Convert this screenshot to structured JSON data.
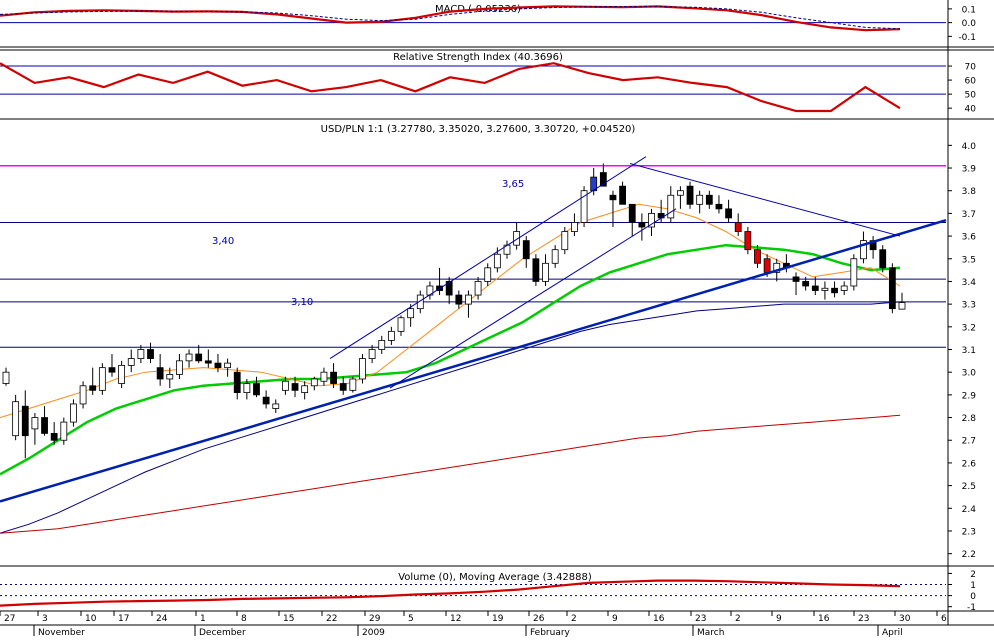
{
  "chart_data": [
    {
      "type": "line",
      "title": "MACD (-0.05236)",
      "y_ticks": [
        0.1,
        0.0,
        -0.1
      ],
      "ylim": [
        -0.17,
        0.15
      ],
      "x": [
        0,
        4,
        8,
        12,
        16,
        20,
        24,
        28,
        32,
        36,
        40,
        44,
        48,
        52,
        56,
        60,
        64,
        68,
        72,
        76,
        80,
        84,
        88,
        92,
        96,
        100,
        104
      ],
      "series": [
        {
          "color": "#d00000",
          "values": [
            0.05,
            0.075,
            0.085,
            0.09,
            0.085,
            0.08,
            0.082,
            0.078,
            0.06,
            0.03,
            0.0,
            0.005,
            0.035,
            0.08,
            0.1,
            0.11,
            0.118,
            0.115,
            0.112,
            0.118,
            0.105,
            0.09,
            0.055,
            0.005,
            -0.035,
            -0.055,
            -0.048
          ]
        },
        {
          "color": "#000080",
          "style": "dashed",
          "values": [
            0.06,
            0.07,
            0.078,
            0.082,
            0.084,
            0.083,
            0.08,
            0.078,
            0.07,
            0.05,
            0.025,
            0.015,
            0.025,
            0.06,
            0.085,
            0.1,
            0.11,
            0.115,
            0.117,
            0.116,
            0.112,
            0.1,
            0.075,
            0.035,
            0.0,
            -0.035,
            -0.045
          ]
        }
      ],
      "ref_lines": [
        0.0
      ]
    },
    {
      "type": "line",
      "title": "Relative Strength Index (40.3696)",
      "y_ticks": [
        70,
        60,
        50,
        40
      ],
      "ylim": [
        33,
        80
      ],
      "ref_lines": [
        70,
        50
      ],
      "x": [
        0,
        4,
        8,
        12,
        16,
        20,
        24,
        28,
        32,
        36,
        40,
        44,
        48,
        52,
        56,
        60,
        64,
        68,
        72,
        76,
        80,
        84,
        88,
        92,
        96,
        100,
        104
      ],
      "series": [
        {
          "color": "#d00000",
          "values": [
            72,
            58,
            62,
            55,
            64,
            58,
            66,
            56,
            60,
            52,
            55,
            60,
            52,
            62,
            58,
            68,
            72,
            65,
            60,
            62,
            58,
            55,
            45,
            38,
            38,
            55,
            40
          ]
        }
      ]
    },
    {
      "type": "candlestick",
      "title": "USD/PLN 1:1 (3.27780, 3.35020, 3.27600, 3.30720, +0.04520)",
      "y_ticks": [
        4.0,
        3.9,
        3.8,
        3.7,
        3.6,
        3.5,
        3.4,
        3.3,
        3.2,
        3.1,
        3.0,
        2.9,
        2.8,
        2.7,
        2.6,
        2.5,
        2.4,
        2.3,
        2.2
      ],
      "ylim": [
        2.15,
        4.05
      ],
      "x_ticks": [
        "27",
        "3",
        "10",
        "17",
        "24",
        "1",
        "8",
        "15",
        "22",
        "29",
        "5",
        "12",
        "19",
        "26",
        "2",
        "9",
        "16",
        "23",
        "2",
        "9",
        "16",
        "23",
        "30",
        "6"
      ],
      "months": [
        "November",
        "December",
        "2009",
        "February",
        "March",
        "April"
      ],
      "annotations": [
        "3,65",
        "3,40",
        "3,10"
      ],
      "candles": [
        [
          0,
          2.95,
          3.02,
          2.94,
          3.0
        ],
        [
          1,
          2.72,
          2.9,
          2.7,
          2.87
        ],
        [
          2,
          2.85,
          2.92,
          2.62,
          2.72
        ],
        [
          3,
          2.75,
          2.82,
          2.68,
          2.8
        ],
        [
          4,
          2.8,
          2.85,
          2.72,
          2.73
        ],
        [
          5,
          2.73,
          2.78,
          2.68,
          2.7
        ],
        [
          6,
          2.7,
          2.8,
          2.68,
          2.78
        ],
        [
          7,
          2.78,
          2.88,
          2.76,
          2.86
        ],
        [
          8,
          2.86,
          2.96,
          2.84,
          2.94
        ],
        [
          9,
          2.94,
          3.02,
          2.9,
          2.92
        ],
        [
          10,
          2.92,
          3.04,
          2.9,
          3.02
        ],
        [
          11,
          3.02,
          3.08,
          2.98,
          3.0
        ],
        [
          12,
          2.95,
          3.05,
          2.93,
          3.03
        ],
        [
          13,
          3.03,
          3.1,
          3.0,
          3.06
        ],
        [
          14,
          3.06,
          3.12,
          3.04,
          3.1
        ],
        [
          15,
          3.1,
          3.13,
          3.04,
          3.06
        ],
        [
          16,
          3.02,
          3.08,
          2.94,
          2.97
        ],
        [
          17,
          2.97,
          3.02,
          2.93,
          2.99
        ],
        [
          18,
          2.99,
          3.08,
          2.97,
          3.05
        ],
        [
          19,
          3.05,
          3.1,
          3.02,
          3.08
        ],
        [
          20,
          3.08,
          3.12,
          3.04,
          3.05
        ],
        [
          21,
          3.05,
          3.1,
          3.02,
          3.04
        ],
        [
          22,
          3.04,
          3.08,
          3.0,
          3.02
        ],
        [
          23,
          3.02,
          3.06,
          2.98,
          3.04
        ],
        [
          24,
          3.0,
          3.02,
          2.88,
          2.91
        ],
        [
          25,
          2.91,
          2.97,
          2.88,
          2.95
        ],
        [
          26,
          2.95,
          2.98,
          2.89,
          2.9
        ],
        [
          27,
          2.89,
          2.92,
          2.84,
          2.86
        ],
        [
          28,
          2.84,
          2.88,
          2.82,
          2.86
        ],
        [
          29,
          2.92,
          2.98,
          2.9,
          2.96
        ],
        [
          30,
          2.95,
          2.98,
          2.89,
          2.92
        ],
        [
          31,
          2.91,
          2.96,
          2.88,
          2.94
        ],
        [
          32,
          2.94,
          2.98,
          2.92,
          2.97
        ],
        [
          33,
          2.96,
          3.02,
          2.94,
          3.0
        ],
        [
          34,
          3.0,
          3.04,
          2.93,
          2.95
        ],
        [
          35,
          2.95,
          2.98,
          2.9,
          2.92
        ],
        [
          36,
          2.92,
          2.98,
          2.91,
          2.97
        ],
        [
          37,
          2.97,
          3.08,
          2.95,
          3.06
        ],
        [
          38,
          3.06,
          3.12,
          3.04,
          3.1
        ],
        [
          39,
          3.1,
          3.16,
          3.08,
          3.14
        ],
        [
          40,
          3.14,
          3.2,
          3.12,
          3.18
        ],
        [
          41,
          3.18,
          3.25,
          3.16,
          3.24
        ],
        [
          42,
          3.24,
          3.3,
          3.2,
          3.28
        ],
        [
          43,
          3.28,
          3.36,
          3.26,
          3.34
        ],
        [
          44,
          3.34,
          3.4,
          3.32,
          3.38
        ],
        [
          45,
          3.38,
          3.46,
          3.34,
          3.36
        ],
        [
          46,
          3.4,
          3.42,
          3.3,
          3.34
        ],
        [
          47,
          3.34,
          3.36,
          3.28,
          3.3
        ],
        [
          48,
          3.3,
          3.36,
          3.24,
          3.34
        ],
        [
          49,
          3.34,
          3.42,
          3.32,
          3.4
        ],
        [
          50,
          3.4,
          3.48,
          3.38,
          3.46
        ],
        [
          51,
          3.46,
          3.55,
          3.44,
          3.52
        ],
        [
          52,
          3.52,
          3.58,
          3.5,
          3.56
        ],
        [
          53,
          3.56,
          3.66,
          3.54,
          3.62
        ],
        [
          54,
          3.58,
          3.6,
          3.46,
          3.5
        ],
        [
          55,
          3.5,
          3.52,
          3.38,
          3.4
        ],
        [
          56,
          3.4,
          3.52,
          3.38,
          3.48
        ],
        [
          57,
          3.48,
          3.56,
          3.46,
          3.54
        ],
        [
          58,
          3.54,
          3.64,
          3.52,
          3.62
        ],
        [
          59,
          3.62,
          3.7,
          3.6,
          3.66
        ],
        [
          60,
          3.66,
          3.82,
          3.64,
          3.8
        ],
        [
          61,
          3.8,
          3.9,
          3.78,
          3.86
        ],
        [
          62,
          3.88,
          3.92,
          3.83,
          3.82
        ],
        [
          63,
          3.78,
          3.8,
          3.64,
          3.76
        ],
        [
          64,
          3.82,
          3.84,
          3.74,
          3.74
        ],
        [
          65,
          3.74,
          3.74,
          3.6,
          3.66
        ],
        [
          66,
          3.66,
          3.7,
          3.58,
          3.64
        ],
        [
          67,
          3.64,
          3.72,
          3.6,
          3.7
        ],
        [
          68,
          3.7,
          3.76,
          3.66,
          3.68
        ],
        [
          69,
          3.68,
          3.82,
          3.66,
          3.78
        ],
        [
          70,
          3.78,
          3.82,
          3.72,
          3.8
        ],
        [
          71,
          3.82,
          3.84,
          3.72,
          3.74
        ],
        [
          72,
          3.74,
          3.8,
          3.7,
          3.78
        ],
        [
          73,
          3.78,
          3.8,
          3.72,
          3.74
        ],
        [
          74,
          3.74,
          3.78,
          3.7,
          3.72
        ],
        [
          75,
          3.72,
          3.76,
          3.66,
          3.68
        ],
        [
          76,
          3.66,
          3.7,
          3.6,
          3.62
        ],
        [
          77,
          3.62,
          3.64,
          3.52,
          3.54
        ],
        [
          78,
          3.54,
          3.56,
          3.46,
          3.48
        ],
        [
          79,
          3.5,
          3.52,
          3.42,
          3.44
        ],
        [
          80,
          3.44,
          3.5,
          3.4,
          3.48
        ],
        [
          81,
          3.48,
          3.52,
          3.44,
          3.46
        ],
        [
          82,
          3.42,
          3.44,
          3.34,
          3.4
        ],
        [
          83,
          3.4,
          3.42,
          3.36,
          3.38
        ],
        [
          84,
          3.38,
          3.42,
          3.34,
          3.36
        ],
        [
          85,
          3.36,
          3.4,
          3.32,
          3.37
        ],
        [
          86,
          3.37,
          3.4,
          3.33,
          3.35
        ],
        [
          87,
          3.36,
          3.4,
          3.34,
          3.38
        ],
        [
          88,
          3.38,
          3.52,
          3.36,
          3.5
        ],
        [
          89,
          3.5,
          3.62,
          3.48,
          3.58
        ],
        [
          90,
          3.58,
          3.6,
          3.5,
          3.54
        ],
        [
          91,
          3.54,
          3.56,
          3.44,
          3.46
        ],
        [
          92,
          3.46,
          3.48,
          3.26,
          3.28
        ],
        [
          93,
          3.278,
          3.35,
          3.276,
          3.307
        ]
      ],
      "moving_averages": [
        {
          "color": "#00cc00",
          "values": [
            2.55,
            2.62,
            2.7,
            2.78,
            2.84,
            2.88,
            2.92,
            2.94,
            2.95,
            2.96,
            2.97,
            2.97,
            2.98,
            2.99,
            3.0,
            3.04,
            3.1,
            3.16,
            3.22,
            3.3,
            3.38,
            3.44,
            3.48,
            3.52,
            3.54,
            3.56,
            3.55,
            3.54,
            3.52,
            3.48,
            3.45,
            3.46
          ]
        },
        {
          "color": "#000080",
          "values": [
            2.29,
            2.33,
            2.38,
            2.44,
            2.5,
            2.56,
            2.61,
            2.66,
            2.7,
            2.74,
            2.78,
            2.82,
            2.86,
            2.9,
            2.94,
            2.98,
            3.02,
            3.06,
            3.1,
            3.14,
            3.18,
            3.21,
            3.23,
            3.25,
            3.27,
            3.28,
            3.29,
            3.3,
            3.3,
            3.3,
            3.3,
            3.31
          ]
        },
        {
          "color": "#c00000",
          "values": [
            2.29,
            2.3,
            2.31,
            2.33,
            2.35,
            2.37,
            2.39,
            2.41,
            2.43,
            2.45,
            2.47,
            2.49,
            2.51,
            2.53,
            2.55,
            2.57,
            2.59,
            2.61,
            2.63,
            2.65,
            2.67,
            2.69,
            2.71,
            2.72,
            2.74,
            2.75,
            2.76,
            2.77,
            2.78,
            2.79,
            2.8,
            2.81
          ]
        },
        {
          "color": "#ff8c1a",
          "values": [
            2.8,
            2.84,
            2.88,
            2.92,
            2.97,
            3.0,
            3.01,
            3.02,
            3.01,
            3.0,
            2.97,
            2.94,
            2.95,
            3.0,
            3.1,
            3.2,
            3.3,
            3.4,
            3.5,
            3.58,
            3.66,
            3.7,
            3.74,
            3.72,
            3.68,
            3.62,
            3.54,
            3.48,
            3.42,
            3.44,
            3.46,
            3.38
          ]
        }
      ],
      "horizontal_lines": [
        {
          "value": 3.91,
          "color": "#ff00ff"
        },
        {
          "value": 3.66,
          "color": "#000080"
        },
        {
          "value": 3.41,
          "color": "#000080"
        },
        {
          "value": 3.31,
          "color": "#000080"
        },
        {
          "value": 3.11,
          "color": "#000080"
        }
      ]
    },
    {
      "type": "line",
      "title": "Volume (0), Moving Average (3.42888)",
      "y_ticks": [
        2,
        1,
        0,
        -1
      ],
      "ylim": [
        -1.3,
        2.4
      ],
      "x": [
        0,
        4,
        8,
        12,
        16,
        20,
        24,
        28,
        32,
        36,
        40,
        44,
        48,
        52,
        56,
        60,
        64,
        68,
        72,
        76,
        80,
        84,
        88,
        92,
        96,
        100,
        104
      ],
      "series": [
        {
          "color": "#d00000",
          "values": [
            -0.9,
            -0.75,
            -0.65,
            -0.55,
            -0.5,
            -0.45,
            -0.4,
            -0.3,
            -0.25,
            -0.2,
            -0.15,
            -0.05,
            0.1,
            0.2,
            0.35,
            0.55,
            0.85,
            1.15,
            1.25,
            1.35,
            1.35,
            1.3,
            1.2,
            1.1,
            1.0,
            0.95,
            0.85
          ]
        }
      ],
      "ref_lines": [
        0,
        1
      ]
    }
  ]
}
